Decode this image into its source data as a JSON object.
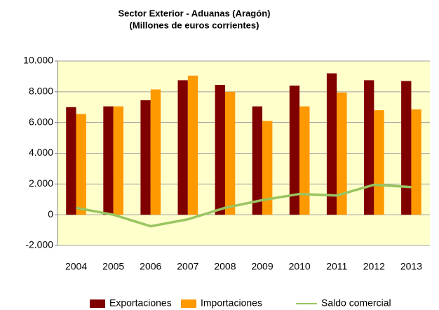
{
  "chart_data": {
    "type": "bar-line",
    "title": "Sector Exterior - Aduanas (Aragón)",
    "subtitle": "(Millones de euros corrientes)",
    "categories": [
      "2004",
      "2005",
      "2006",
      "2007",
      "2008",
      "2009",
      "2010",
      "2011",
      "2012",
      "2013"
    ],
    "series": [
      {
        "name": "Exportaciones",
        "type": "bar",
        "color": "#800000",
        "values": [
          7000,
          7050,
          7450,
          8750,
          8450,
          7050,
          8400,
          9200,
          8750,
          8700
        ]
      },
      {
        "name": "Importaciones",
        "type": "bar",
        "color": "#ff9900",
        "values": [
          6550,
          7050,
          8150,
          9050,
          8000,
          6100,
          7050,
          7950,
          6800,
          6850
        ]
      },
      {
        "name": "Saldo comercial",
        "type": "line",
        "color": "#99c561",
        "values": [
          450,
          0,
          -750,
          -300,
          450,
          950,
          1350,
          1250,
          1950,
          1800
        ]
      }
    ],
    "ylim": [
      -2000,
      10000
    ],
    "yticks": [
      {
        "value": -2000,
        "label": "-2.000"
      },
      0,
      {
        "value": 2000,
        "label": "2.000"
      },
      {
        "value": 4000,
        "label": "4.000"
      },
      {
        "value": 6000,
        "label": "6.000"
      },
      {
        "value": 8000,
        "label": "8.000"
      },
      {
        "value": 10000,
        "label": "10.000"
      }
    ],
    "grid": true,
    "legend": "bottom",
    "plot_background": "#ffffcc"
  }
}
